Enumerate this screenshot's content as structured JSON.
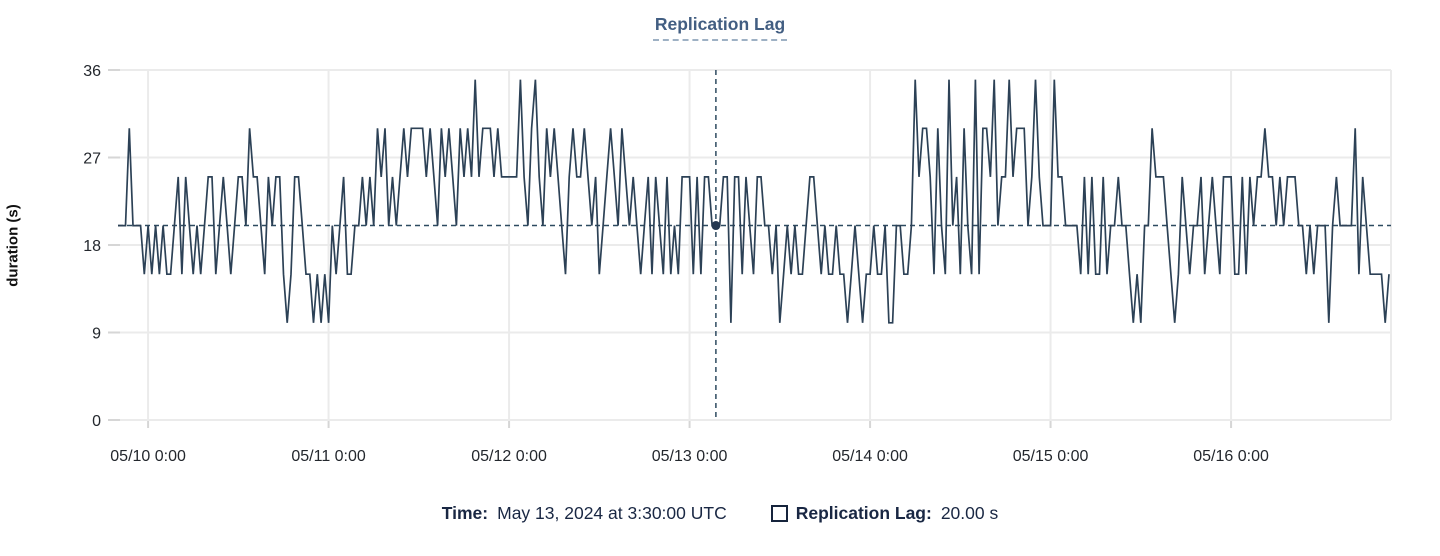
{
  "title": {
    "text": "Replication Lag"
  },
  "tooltip": {
    "time_label": "Time:",
    "time_value": "May 13, 2024 at 3:30:00 UTC",
    "series_label": "Replication Lag:",
    "series_value": "20.00 s"
  },
  "colors": {
    "line": "#2c4156",
    "crosshair": "#2d4a60",
    "marker": "#233750",
    "grid": "#ebebeb",
    "axis_tick": "#d6d6d6",
    "title_text": "#425e82",
    "title_underline": "#9eb1c4",
    "footer_text": "#192743"
  },
  "chart_data": {
    "type": "line",
    "title": "Replication Lag",
    "xlabel": "",
    "ylabel": "duration (s)",
    "unit": "s",
    "ylim": [
      0,
      36
    ],
    "y_ticks": [
      0,
      9,
      18,
      27,
      36
    ],
    "x_tick_labels": [
      "05/10 0:00",
      "05/11 0:00",
      "05/12 0:00",
      "05/13 0:00",
      "05/14 0:00",
      "05/15 0:00",
      "05/16 0:00"
    ],
    "x_start": "2024-05-09T20:00:00Z",
    "interval_minutes": 30,
    "x_first_tick_index": 8,
    "x_tick_step": 48,
    "grid": true,
    "legend_position": "bottom",
    "reference_line_y": 20,
    "selected_point": {
      "index": 159,
      "time": "May 13, 2024 at 3:30:00 UTC",
      "value": 20.0
    },
    "values": [
      20,
      20,
      20,
      30,
      20,
      20,
      20,
      15,
      20,
      15,
      20,
      15,
      20,
      15,
      15,
      20,
      25,
      15,
      25,
      20,
      15,
      20,
      15,
      20,
      25,
      25,
      15,
      20,
      25,
      20,
      15,
      20,
      25,
      25,
      20,
      30,
      25,
      25,
      20,
      15,
      25,
      20,
      25,
      25,
      15,
      10,
      15,
      25,
      25,
      20,
      15,
      15,
      10,
      15,
      10,
      15,
      10,
      20,
      15,
      20,
      25,
      15,
      15,
      20,
      20,
      25,
      20,
      25,
      20,
      30,
      25,
      30,
      20,
      25,
      20,
      25,
      30,
      25,
      30,
      30,
      30,
      30,
      25,
      30,
      25,
      20,
      30,
      25,
      30,
      25,
      20,
      30,
      25,
      30,
      25,
      35,
      25,
      30,
      30,
      30,
      25,
      30,
      25,
      25,
      25,
      25,
      25,
      35,
      25,
      20,
      30,
      35,
      25,
      20,
      30,
      25,
      30,
      25,
      20,
      15,
      25,
      30,
      25,
      25,
      30,
      25,
      20,
      25,
      15,
      20,
      25,
      30,
      25,
      20,
      30,
      25,
      20,
      25,
      20,
      15,
      20,
      25,
      15,
      25,
      20,
      15,
      25,
      15,
      20,
      15,
      25,
      25,
      25,
      15,
      25,
      15,
      25,
      25,
      20,
      20,
      20,
      25,
      25,
      10,
      25,
      25,
      15,
      25,
      20,
      15,
      25,
      25,
      20,
      20,
      15,
      20,
      10,
      15,
      20,
      15,
      20,
      15,
      15,
      20,
      25,
      25,
      20,
      15,
      20,
      15,
      15,
      20,
      15,
      15,
      10,
      15,
      20,
      15,
      10,
      15,
      15,
      20,
      15,
      15,
      20,
      10,
      10,
      20,
      20,
      15,
      15,
      20,
      35,
      25,
      30,
      30,
      25,
      15,
      30,
      20,
      15,
      35,
      20,
      25,
      15,
      30,
      20,
      15,
      35,
      15,
      30,
      30,
      25,
      35,
      20,
      25,
      25,
      35,
      25,
      30,
      30,
      30,
      20,
      25,
      35,
      25,
      20,
      20,
      20,
      35,
      25,
      25,
      20,
      20,
      20,
      20,
      15,
      25,
      15,
      25,
      15,
      15,
      25,
      15,
      20,
      20,
      25,
      20,
      20,
      15,
      10,
      15,
      10,
      20,
      20,
      30,
      25,
      25,
      25,
      20,
      15,
      10,
      15,
      25,
      20,
      15,
      20,
      20,
      25,
      15,
      20,
      25,
      20,
      15,
      25,
      25,
      25,
      15,
      15,
      25,
      15,
      25,
      20,
      25,
      25,
      30,
      25,
      25,
      20,
      25,
      20,
      25,
      25,
      25,
      20,
      20,
      15,
      20,
      15,
      20,
      20,
      20,
      10,
      20,
      25,
      20,
      20,
      20,
      20,
      30,
      15,
      25,
      20,
      15,
      15,
      15,
      15,
      10,
      15
    ]
  }
}
